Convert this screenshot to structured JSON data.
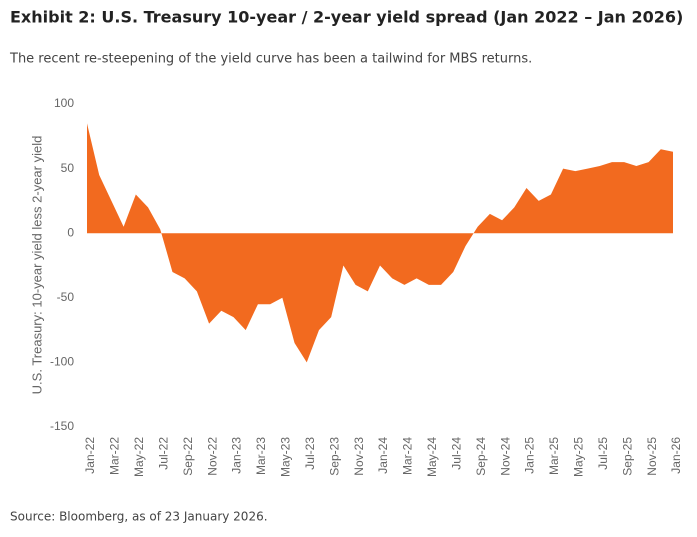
{
  "chart_data": {
    "type": "area",
    "title": "Exhibit 2: U.S. Treasury 10-year / 2-year yield spread (Jan 2022 – Jan 2026)",
    "subtitle": "The recent re-steepening of the yield curve has been a tailwind for MBS returns.",
    "y_label": "U.S. Treasury: 10-year yield less 2-year yield",
    "source": "Source: Bloomberg, as of 23 January 2026.",
    "color": "#f26a1f",
    "categories": [
      "Jan-22",
      null,
      "Mar-22",
      null,
      "May-22",
      null,
      "Jul-22",
      null,
      "Sep-22",
      null,
      "Nov-22",
      null,
      "Jan-23",
      null,
      "Mar-23",
      null,
      "May-23",
      null,
      "Jul-23",
      null,
      "Sep-23",
      null,
      "Nov-23",
      null,
      "Jan-24",
      null,
      "Mar-24",
      null,
      "May-24",
      null,
      "Jul-24",
      null,
      "Sep-24",
      null,
      "Nov-24",
      null,
      "Jan-25",
      null,
      "Mar-25",
      null,
      "May-25",
      null,
      "Jul-25",
      null,
      "Sep-25",
      null,
      "Nov-25",
      null,
      "Jan-26"
    ],
    "values": [
      85,
      45,
      25,
      5,
      30,
      20,
      3,
      -30,
      -35,
      -45,
      -70,
      -60,
      -65,
      -75,
      -55,
      -55,
      -50,
      -85,
      -100,
      -75,
      -65,
      -25,
      -40,
      -45,
      -25,
      -35,
      -40,
      -35,
      -40,
      -40,
      -30,
      -10,
      5,
      15,
      10,
      20,
      35,
      25,
      30,
      50,
      48,
      50,
      52,
      55,
      55,
      52,
      55,
      65,
      63
    ],
    "ylim": [
      -150,
      100
    ],
    "yticks": [
      -150,
      -100,
      -50,
      0,
      50,
      100
    ]
  }
}
